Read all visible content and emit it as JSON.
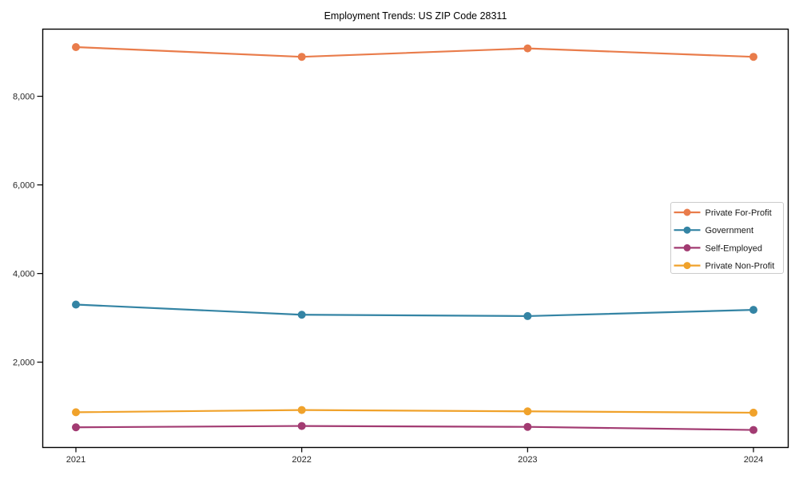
{
  "window": {
    "background_color": "#ffffff"
  },
  "chart_data": {
    "type": "line",
    "title": "Employment Trends: US ZIP Code 28311",
    "xlabel": "",
    "ylabel": "",
    "x": [
      2021,
      2022,
      2023,
      2024
    ],
    "x_tick_labels": [
      "2021",
      "2022",
      "2023",
      "2024"
    ],
    "series": [
      {
        "name": "Private For-Profit",
        "color": "#E97C4B",
        "values": [
          9110,
          8890,
          9080,
          8890
        ]
      },
      {
        "name": "Government",
        "color": "#3484A4",
        "values": [
          3300,
          3070,
          3040,
          3180
        ]
      },
      {
        "name": "Self-Employed",
        "color": "#A23B72",
        "values": [
          530,
          560,
          540,
          470
        ]
      },
      {
        "name": "Private Non-Profit",
        "color": "#F0A22B",
        "values": [
          870,
          920,
          890,
          860
        ]
      }
    ],
    "y_ticks": [
      {
        "value": 2000,
        "label": "2,000"
      },
      {
        "value": 4000,
        "label": "4,000"
      },
      {
        "value": 6000,
        "label": "6,000"
      },
      {
        "value": 8000,
        "label": "8,000"
      }
    ],
    "ylim": [
      75,
      9515
    ],
    "grid": false,
    "marker": "circle",
    "legend_position": "center right",
    "legend_entries": [
      "Private For-Profit",
      "Government",
      "Self-Employed",
      "Private Non-Profit"
    ],
    "axis_color": "#000000",
    "tick_label_color": "#262626",
    "legend_border_color": "#cccccc",
    "legend_text_color": "#1a1a1a",
    "title_color": "#000000"
  }
}
